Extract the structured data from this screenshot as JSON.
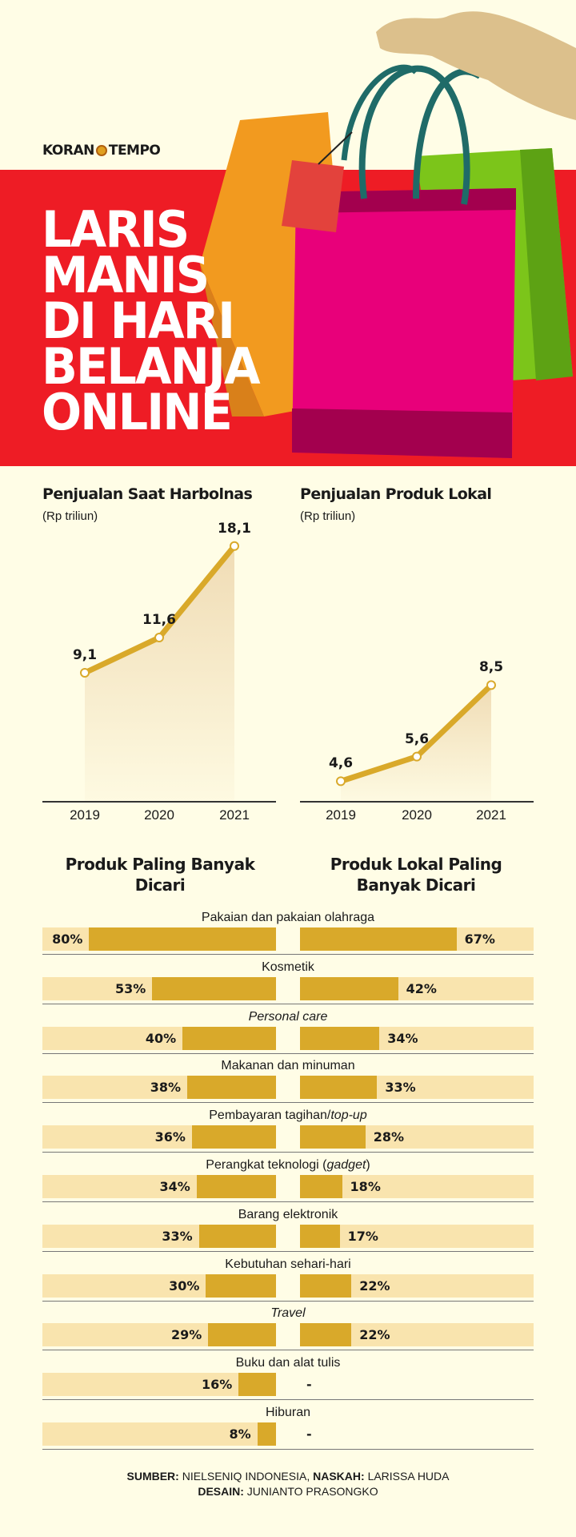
{
  "header": {
    "logo_text_left": "KORAN",
    "logo_text_right": "TEMPO",
    "title_lines": [
      "LARIS",
      "MANIS",
      "DI HARI",
      "BELANJA",
      "ONLINE"
    ]
  },
  "colors": {
    "background": "#fffde6",
    "red": "#ee1c25",
    "line": "#d9a92a",
    "bar_fill": "#d9a92a",
    "bar_track": "#f9e4ae",
    "area": "#f0dcb5"
  },
  "illustration_icons": [
    "hand-icon",
    "shopping-bags-icon"
  ],
  "chart_data": [
    {
      "type": "line",
      "title": "Penjualan Saat Harbolnas",
      "subtitle": "(Rp triliun)",
      "x": [
        "2019",
        "2020",
        "2021"
      ],
      "values": [
        9.1,
        11.6,
        18.1
      ],
      "labels": [
        "9,1",
        "11,6",
        "18,1"
      ],
      "ylim": [
        0,
        18.2
      ],
      "grid": false
    },
    {
      "type": "line",
      "title": "Penjualan Produk Lokal",
      "subtitle": "(Rp triliun)",
      "x": [
        "2019",
        "2020",
        "2021"
      ],
      "values": [
        4.6,
        5.6,
        8.5
      ],
      "labels": [
        "4,6",
        "5,6",
        "8,5"
      ],
      "ylim": [
        3.8,
        14.2
      ],
      "grid": false
    },
    {
      "type": "bar",
      "orientation": "horizontal-butterfly",
      "series": [
        {
          "name": "Produk Paling Banyak Dicari",
          "values": [
            80,
            53,
            40,
            38,
            36,
            34,
            33,
            30,
            29,
            16,
            8
          ]
        },
        {
          "name": "Produk Lokal Paling Banyak Dicari",
          "values": [
            67,
            42,
            34,
            33,
            28,
            18,
            17,
            22,
            22,
            null,
            null
          ]
        }
      ],
      "xlim": [
        0,
        100
      ],
      "missing_label": "-",
      "categories": [
        [
          {
            "t": "Pakaian dan pakaian olahraga"
          }
        ],
        [
          {
            "t": "Kosmetik"
          }
        ],
        [
          {
            "t": "Personal care",
            "i": true
          }
        ],
        [
          {
            "t": "Makanan dan minuman"
          }
        ],
        [
          {
            "t": "Pembayaran tagihan/"
          },
          {
            "t": "top-up",
            "i": true
          }
        ],
        [
          {
            "t": "Perangkat teknologi ("
          },
          {
            "t": "gadget",
            "i": true
          },
          {
            "t": ")"
          }
        ],
        [
          {
            "t": "Barang elektronik"
          }
        ],
        [
          {
            "t": "Kebutuhan sehari-hari"
          }
        ],
        [
          {
            "t": "Travel",
            "i": true
          }
        ],
        [
          {
            "t": "Buku dan alat tulis"
          }
        ],
        [
          {
            "t": "Hiburan"
          }
        ]
      ],
      "titles": [
        "Produk Paling Banyak Dicari",
        "Produk Lokal Paling Banyak Dicari"
      ]
    }
  ],
  "footer": {
    "source_label": "SUMBER:",
    "source": "NIELSENIQ INDONESIA,",
    "writer_label": "NASKAH:",
    "writer": "LARISSA HUDA",
    "design_label": "DESAIN:",
    "design": "JUNIANTO PRASONGKO"
  }
}
